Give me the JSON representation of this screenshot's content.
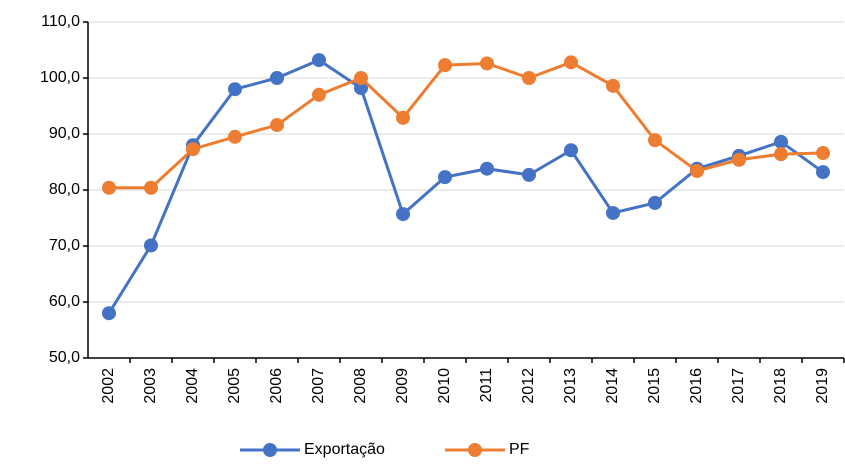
{
  "chart_data": {
    "type": "line",
    "categories": [
      "2002",
      "2003",
      "2004",
      "2005",
      "2006",
      "2007",
      "2008",
      "2009",
      "2010",
      "2011",
      "2012",
      "2013",
      "2014",
      "2015",
      "2016",
      "2017",
      "2018",
      "2019"
    ],
    "series": [
      {
        "name": "Exportação",
        "color": "#4472c4",
        "values": [
          58.0,
          70.1,
          88.0,
          98.0,
          100.0,
          103.2,
          98.2,
          75.7,
          82.3,
          83.8,
          82.7,
          87.1,
          75.9,
          77.7,
          83.8,
          86.1,
          88.6,
          83.2
        ]
      },
      {
        "name": "PF",
        "color": "#ed7d31",
        "values": [
          80.4,
          80.4,
          87.3,
          89.5,
          91.6,
          97.0,
          100.0,
          92.9,
          102.3,
          102.6,
          100.0,
          102.8,
          98.6,
          88.9,
          83.4,
          85.4,
          86.4,
          86.6
        ]
      }
    ],
    "ylim": [
      50,
      110
    ],
    "yticks": [
      {
        "value": 50,
        "label": "50,0"
      },
      {
        "value": 60,
        "label": "60,0"
      },
      {
        "value": 70,
        "label": "70,0"
      },
      {
        "value": 80,
        "label": "80,0"
      },
      {
        "value": 90,
        "label": "90,0"
      },
      {
        "value": 100,
        "label": "100,0"
      },
      {
        "value": 110,
        "label": "110,0"
      }
    ],
    "grid": true,
    "legend": "bottom"
  }
}
